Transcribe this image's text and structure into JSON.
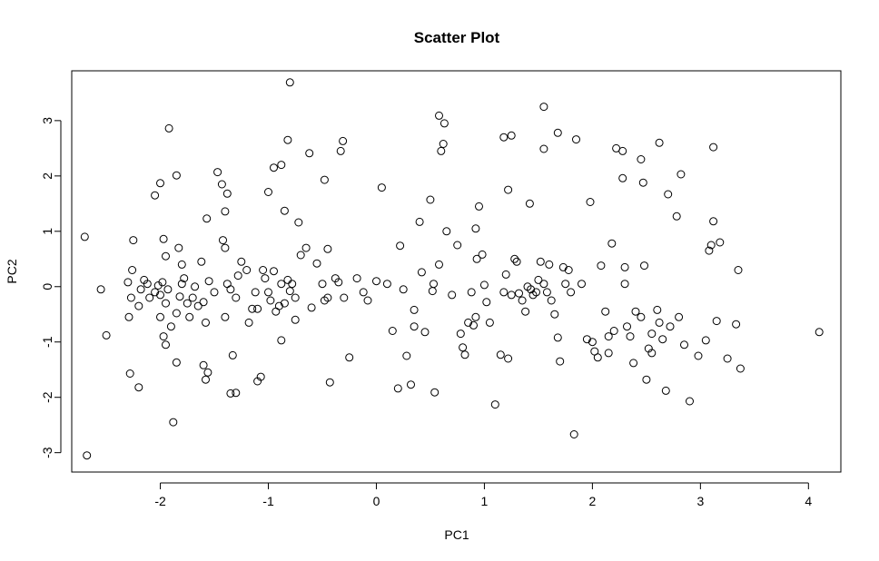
{
  "chart_data": {
    "type": "scatter",
    "title": "Scatter Plot",
    "xlabel": "PC1",
    "ylabel": "PC2",
    "xlim": [
      -2.82,
      4.3
    ],
    "ylim": [
      -3.35,
      3.9
    ],
    "xticks": [
      -2,
      -1,
      0,
      1,
      2,
      3,
      4
    ],
    "yticks": [
      -3,
      -2,
      -1,
      0,
      1,
      2,
      3
    ],
    "xtick_labels": [
      "-2",
      "-1",
      "0",
      "1",
      "2",
      "3",
      "4"
    ],
    "ytick_labels": [
      "-3",
      "-2",
      "-1",
      "0",
      "1",
      "2",
      "3"
    ],
    "grid": false,
    "legend": "none",
    "marker": "open-circle",
    "color": "#000000",
    "points": [
      [
        -2.7,
        0.9
      ],
      [
        -2.55,
        -0.05
      ],
      [
        -2.5,
        -0.88
      ],
      [
        -2.68,
        -3.05
      ],
      [
        -2.28,
        -1.57
      ],
      [
        -2.2,
        -1.82
      ],
      [
        -2.25,
        0.84
      ],
      [
        -2.26,
        0.3
      ],
      [
        -2.3,
        0.08
      ],
      [
        -2.27,
        -0.2
      ],
      [
        -2.29,
        -0.55
      ],
      [
        -2.2,
        -0.35
      ],
      [
        -2.15,
        0.12
      ],
      [
        -2.12,
        0.05
      ],
      [
        -2.18,
        -0.05
      ],
      [
        -2.1,
        -0.2
      ],
      [
        -2.05,
        -0.1
      ],
      [
        -2.02,
        0.02
      ],
      [
        -2.0,
        -0.15
      ],
      [
        -1.98,
        0.08
      ],
      [
        -1.95,
        -0.3
      ],
      [
        -1.93,
        -0.05
      ],
      [
        -2.05,
        1.65
      ],
      [
        -2.0,
        1.87
      ],
      [
        -1.92,
        2.86
      ],
      [
        -1.85,
        2.01
      ],
      [
        -1.97,
        0.86
      ],
      [
        -1.95,
        0.55
      ],
      [
        -1.97,
        -0.9
      ],
      [
        -1.95,
        -1.05
      ],
      [
        -2.0,
        -0.55
      ],
      [
        -1.9,
        -0.72
      ],
      [
        -1.85,
        -0.48
      ],
      [
        -1.82,
        -0.18
      ],
      [
        -1.8,
        0.05
      ],
      [
        -1.78,
        0.15
      ],
      [
        -1.75,
        -0.3
      ],
      [
        -1.73,
        -0.55
      ],
      [
        -1.7,
        -0.2
      ],
      [
        -1.68,
        0.0
      ],
      [
        -1.65,
        -0.35
      ],
      [
        -1.62,
        0.45
      ],
      [
        -1.6,
        -0.28
      ],
      [
        -1.58,
        -0.65
      ],
      [
        -1.55,
        0.1
      ],
      [
        -1.5,
        -0.1
      ],
      [
        -1.88,
        -2.45
      ],
      [
        -1.85,
        -1.37
      ],
      [
        -1.83,
        0.7
      ],
      [
        -1.8,
        0.4
      ],
      [
        -1.57,
        1.23
      ],
      [
        -1.6,
        -1.42
      ],
      [
        -1.58,
        -1.68
      ],
      [
        -1.56,
        -1.55
      ],
      [
        -1.47,
        2.07
      ],
      [
        -1.43,
        1.85
      ],
      [
        -1.4,
        1.36
      ],
      [
        -1.38,
        1.68
      ],
      [
        -1.42,
        0.84
      ],
      [
        -1.4,
        0.7
      ],
      [
        -1.38,
        0.05
      ],
      [
        -1.35,
        -0.05
      ],
      [
        -1.3,
        -0.2
      ],
      [
        -1.4,
        -0.55
      ],
      [
        -1.35,
        -1.93
      ],
      [
        -1.3,
        -1.92
      ],
      [
        -1.33,
        -1.24
      ],
      [
        -1.28,
        0.2
      ],
      [
        -1.25,
        0.45
      ],
      [
        -1.2,
        0.3
      ],
      [
        -1.18,
        -0.65
      ],
      [
        -1.15,
        -0.4
      ],
      [
        -1.12,
        -0.1
      ],
      [
        -1.1,
        -0.4
      ],
      [
        -1.05,
        0.3
      ],
      [
        -1.03,
        0.15
      ],
      [
        -1.0,
        -0.1
      ],
      [
        -0.98,
        -0.25
      ],
      [
        -0.95,
        0.28
      ],
      [
        -0.93,
        -0.45
      ],
      [
        -0.9,
        -0.35
      ],
      [
        -0.88,
        0.05
      ],
      [
        -0.85,
        -0.3
      ],
      [
        -0.82,
        0.12
      ],
      [
        -0.8,
        -0.08
      ],
      [
        -0.78,
        0.05
      ],
      [
        -0.75,
        -0.2
      ],
      [
        -1.07,
        -1.63
      ],
      [
        -1.1,
        -1.71
      ],
      [
        -1.0,
        1.71
      ],
      [
        -0.95,
        2.15
      ],
      [
        -0.88,
        2.2
      ],
      [
        -0.82,
        2.65
      ],
      [
        -0.8,
        3.69
      ],
      [
        -0.85,
        1.37
      ],
      [
        -0.88,
        -0.97
      ],
      [
        -0.75,
        -0.6
      ],
      [
        -0.7,
        0.57
      ],
      [
        -0.72,
        1.16
      ],
      [
        -0.65,
        0.7
      ],
      [
        -0.62,
        2.41
      ],
      [
        -0.6,
        -0.38
      ],
      [
        -0.55,
        0.42
      ],
      [
        -0.5,
        0.05
      ],
      [
        -0.48,
        -0.25
      ],
      [
        -0.45,
        -0.2
      ],
      [
        -0.45,
        0.68
      ],
      [
        -0.48,
        1.93
      ],
      [
        -0.43,
        -1.73
      ],
      [
        -0.38,
        0.15
      ],
      [
        -0.35,
        0.08
      ],
      [
        -0.33,
        2.45
      ],
      [
        -0.31,
        2.63
      ],
      [
        -0.3,
        -0.2
      ],
      [
        -0.25,
        -1.28
      ],
      [
        -0.18,
        0.15
      ],
      [
        -0.12,
        -0.1
      ],
      [
        -0.08,
        -0.25
      ],
      [
        0.0,
        0.1
      ],
      [
        0.05,
        1.79
      ],
      [
        0.1,
        0.05
      ],
      [
        0.15,
        -0.8
      ],
      [
        0.2,
        -1.84
      ],
      [
        0.22,
        0.74
      ],
      [
        0.25,
        -0.05
      ],
      [
        0.28,
        -1.25
      ],
      [
        0.32,
        -1.77
      ],
      [
        0.35,
        -0.72
      ],
      [
        0.35,
        -0.42
      ],
      [
        0.4,
        1.17
      ],
      [
        0.42,
        0.26
      ],
      [
        0.45,
        -0.82
      ],
      [
        0.5,
        1.57
      ],
      [
        0.52,
        -0.08
      ],
      [
        0.53,
        0.05
      ],
      [
        0.54,
        -1.91
      ],
      [
        0.58,
        0.4
      ],
      [
        0.6,
        2.45
      ],
      [
        0.62,
        2.58
      ],
      [
        0.58,
        3.09
      ],
      [
        0.63,
        2.95
      ],
      [
        0.65,
        1.0
      ],
      [
        0.7,
        -0.15
      ],
      [
        0.75,
        0.75
      ],
      [
        0.78,
        -0.85
      ],
      [
        0.8,
        -1.1
      ],
      [
        0.82,
        -1.23
      ],
      [
        0.85,
        -0.65
      ],
      [
        0.88,
        -0.1
      ],
      [
        0.9,
        -0.7
      ],
      [
        0.92,
        -0.55
      ],
      [
        0.92,
        1.05
      ],
      [
        0.93,
        0.5
      ],
      [
        0.95,
        1.45
      ],
      [
        0.98,
        0.58
      ],
      [
        1.0,
        0.03
      ],
      [
        1.02,
        -0.28
      ],
      [
        1.05,
        -0.65
      ],
      [
        1.1,
        -2.13
      ],
      [
        1.15,
        -1.23
      ],
      [
        1.18,
        -0.1
      ],
      [
        1.2,
        0.22
      ],
      [
        1.22,
        1.75
      ],
      [
        1.18,
        2.7
      ],
      [
        1.25,
        2.73
      ],
      [
        1.22,
        -1.3
      ],
      [
        1.25,
        -0.15
      ],
      [
        1.28,
        0.5
      ],
      [
        1.3,
        0.45
      ],
      [
        1.32,
        -0.12
      ],
      [
        1.35,
        -0.25
      ],
      [
        1.38,
        -0.45
      ],
      [
        1.4,
        0.0
      ],
      [
        1.42,
        1.5
      ],
      [
        1.43,
        -0.05
      ],
      [
        1.45,
        -0.15
      ],
      [
        1.48,
        -0.1
      ],
      [
        1.5,
        0.12
      ],
      [
        1.52,
        0.45
      ],
      [
        1.55,
        0.05
      ],
      [
        1.58,
        -0.1
      ],
      [
        1.6,
        0.4
      ],
      [
        1.62,
        -0.25
      ],
      [
        1.65,
        -0.5
      ],
      [
        1.68,
        -0.92
      ],
      [
        1.68,
        2.78
      ],
      [
        1.55,
        3.25
      ],
      [
        1.55,
        2.49
      ],
      [
        1.7,
        -1.35
      ],
      [
        1.73,
        0.35
      ],
      [
        1.75,
        0.05
      ],
      [
        1.78,
        0.3
      ],
      [
        1.8,
        -0.1
      ],
      [
        1.83,
        -2.67
      ],
      [
        1.85,
        2.66
      ],
      [
        1.9,
        0.05
      ],
      [
        1.95,
        -0.95
      ],
      [
        1.98,
        1.53
      ],
      [
        2.0,
        -1.0
      ],
      [
        2.02,
        -1.17
      ],
      [
        2.05,
        -1.28
      ],
      [
        2.08,
        0.38
      ],
      [
        2.12,
        -0.45
      ],
      [
        2.15,
        -0.9
      ],
      [
        2.15,
        -1.2
      ],
      [
        2.18,
        0.78
      ],
      [
        2.2,
        -0.8
      ],
      [
        2.22,
        2.5
      ],
      [
        2.28,
        2.45
      ],
      [
        2.28,
        1.96
      ],
      [
        2.3,
        0.35
      ],
      [
        2.3,
        0.05
      ],
      [
        2.32,
        -0.72
      ],
      [
        2.35,
        -0.9
      ],
      [
        2.38,
        -1.38
      ],
      [
        2.4,
        -0.45
      ],
      [
        2.45,
        -0.55
      ],
      [
        2.45,
        2.3
      ],
      [
        2.47,
        1.88
      ],
      [
        2.48,
        0.38
      ],
      [
        2.5,
        -1.68
      ],
      [
        2.52,
        -1.12
      ],
      [
        2.55,
        -0.85
      ],
      [
        2.55,
        -1.2
      ],
      [
        2.6,
        -0.42
      ],
      [
        2.62,
        -0.65
      ],
      [
        2.62,
        2.6
      ],
      [
        2.65,
        -0.95
      ],
      [
        2.68,
        -1.88
      ],
      [
        2.7,
        1.67
      ],
      [
        2.72,
        -0.72
      ],
      [
        2.78,
        1.27
      ],
      [
        2.8,
        -0.55
      ],
      [
        2.82,
        2.03
      ],
      [
        2.85,
        -1.05
      ],
      [
        2.9,
        -2.07
      ],
      [
        2.98,
        -1.25
      ],
      [
        3.05,
        -0.97
      ],
      [
        3.08,
        0.65
      ],
      [
        3.1,
        0.75
      ],
      [
        3.12,
        1.18
      ],
      [
        3.12,
        2.52
      ],
      [
        3.15,
        -0.62
      ],
      [
        3.18,
        0.8
      ],
      [
        3.25,
        -1.3
      ],
      [
        3.33,
        -0.68
      ],
      [
        3.35,
        0.3
      ],
      [
        3.37,
        -1.48
      ],
      [
        4.1,
        -0.82
      ]
    ]
  }
}
